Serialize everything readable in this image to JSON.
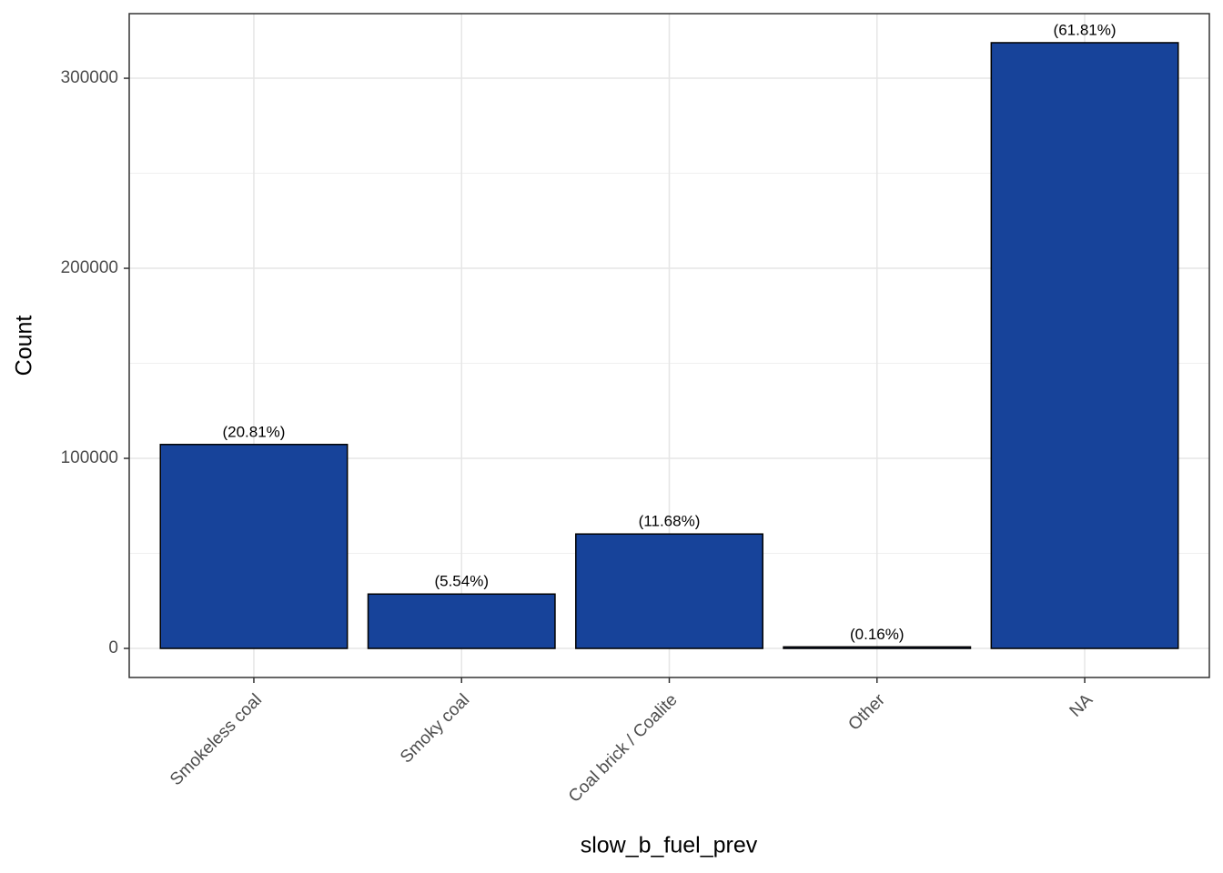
{
  "chart_data": {
    "type": "bar",
    "categories": [
      "Smokeless coal",
      "Smoky coal",
      "Coal brick / Coalite",
      "Other",
      "NA"
    ],
    "values": [
      107300,
      28600,
      60200,
      800,
      318700
    ],
    "bar_labels": [
      "(20.81%)",
      "(5.54%)",
      "(11.68%)",
      "(0.16%)",
      "(61.81%)"
    ],
    "color": "#17439a",
    "xlabel": "slow_b_fuel_prev",
    "ylabel": "Count",
    "ylim": [
      -15300,
      334000
    ],
    "yticks": [
      0,
      100000,
      200000,
      300000
    ],
    "y_minor_grid": [
      50000,
      150000,
      250000
    ],
    "grid": true
  }
}
